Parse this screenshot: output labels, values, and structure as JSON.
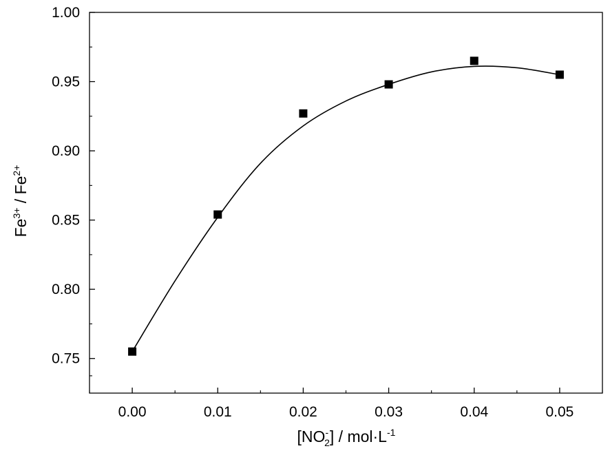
{
  "chart_data": {
    "type": "scatter",
    "title": "",
    "xlim": [
      -0.005,
      0.055
    ],
    "ylim": [
      0.725,
      1.0
    ],
    "grid": false,
    "x_ticks": [
      0.0,
      0.01,
      0.02,
      0.03,
      0.04,
      0.05
    ],
    "x_tick_labels": [
      "0.00",
      "0.01",
      "0.02",
      "0.03",
      "0.04",
      "0.05"
    ],
    "y_ticks": [
      0.75,
      0.8,
      0.85,
      0.9,
      0.95,
      1.0
    ],
    "y_tick_labels": [
      "0.75",
      "0.80",
      "0.85",
      "0.90",
      "0.95",
      "1.00"
    ],
    "xlabel": {
      "prefix": "[NO",
      "sup": "-",
      "sub": "2",
      "suffix": "] / mol·L",
      "unit_sup": "-1"
    },
    "ylabel": {
      "part1": "Fe",
      "sup1": "3+",
      "mid": " / Fe",
      "sup2": "2+"
    },
    "series": [
      {
        "marker": "square",
        "color": "#000000",
        "x": [
          0.0,
          0.01,
          0.02,
          0.03,
          0.04,
          0.05
        ],
        "y": [
          0.755,
          0.854,
          0.927,
          0.948,
          0.965,
          0.955
        ]
      }
    ],
    "fit_curve": {
      "color": "#000000",
      "x": [
        0.0,
        0.005,
        0.01,
        0.015,
        0.02,
        0.025,
        0.03,
        0.035,
        0.04,
        0.045,
        0.05
      ],
      "y": [
        0.755,
        0.806,
        0.852,
        0.891,
        0.918,
        0.936,
        0.948,
        0.957,
        0.961,
        0.96,
        0.955
      ]
    }
  }
}
